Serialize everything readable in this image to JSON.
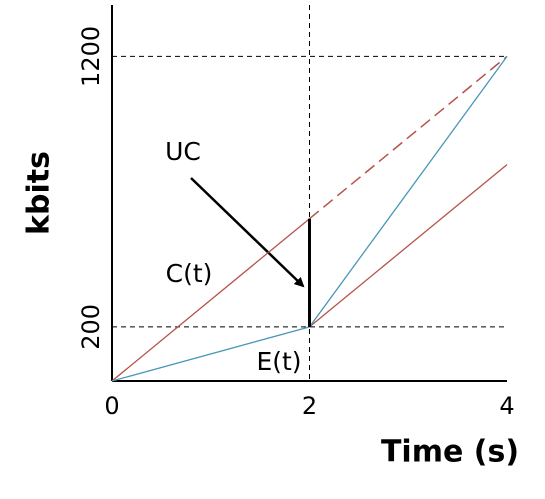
{
  "chart_data": {
    "type": "line",
    "x_label": "Time (s)",
    "y_label": "kbits",
    "xlim": [
      0,
      4
    ],
    "ylim": [
      0,
      1390
    ],
    "xticks": [
      0,
      2,
      4
    ],
    "yticks": [
      200,
      1200
    ],
    "hlines": [
      1200,
      200
    ],
    "vlines": [
      2
    ],
    "series": [
      {
        "name": "C(t)",
        "color": "#b5534a",
        "x": [
          0,
          2
        ],
        "values": [
          0,
          600
        ]
      },
      {
        "color": "#b5534a",
        "dashed": true,
        "x": [
          2,
          4
        ],
        "values": [
          600,
          1200
        ]
      },
      {
        "color": "#b5534a",
        "x": [
          2,
          4
        ],
        "values": [
          200,
          800
        ]
      },
      {
        "name": "E(t)",
        "color": "#4a97b8",
        "x": [
          0,
          2,
          4
        ],
        "values": [
          0,
          200,
          1200
        ]
      },
      {
        "name": "UC",
        "color": "#000000",
        "x": [
          2,
          2
        ],
        "values": [
          200,
          600
        ]
      }
    ]
  }
}
